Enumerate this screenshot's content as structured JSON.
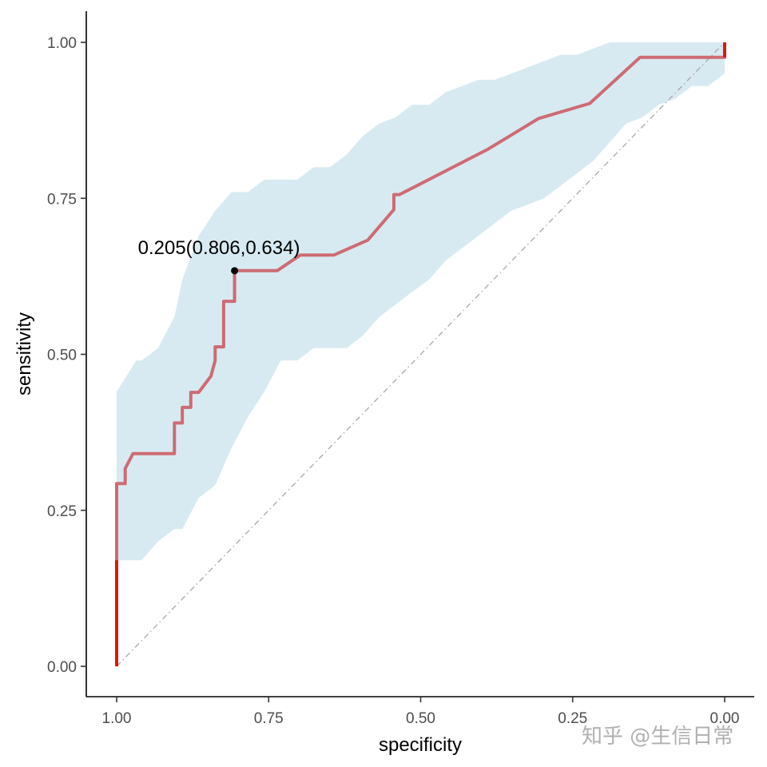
{
  "chart_data": {
    "type": "line",
    "subtype": "roc-curve",
    "xlabel": "specificity",
    "ylabel": "sensitivity",
    "xlim": [
      1.0,
      0.0
    ],
    "ylim": [
      0.0,
      1.0
    ],
    "x_ticks": [
      1.0,
      0.75,
      0.5,
      0.25,
      0.0
    ],
    "x_tick_labels": [
      "1.00",
      "0.75",
      "0.50",
      "0.25",
      "0.00"
    ],
    "y_ticks": [
      0.0,
      0.25,
      0.5,
      0.75,
      1.0
    ],
    "y_tick_labels": [
      "0.00",
      "0.25",
      "0.50",
      "0.75",
      "1.00"
    ],
    "grid": false,
    "colors": {
      "curve": "#cd6b73",
      "curve_ends": "#e0150f",
      "ci_band": "#d8eaf1",
      "diagonal": "#a6a6a6",
      "point": "#000000",
      "axis": "#000000"
    },
    "roc_curve": {
      "specificity": [
        1.0,
        1.0,
        0.986,
        0.986,
        0.973,
        0.959,
        0.905,
        0.905,
        0.892,
        0.892,
        0.878,
        0.878,
        0.865,
        0.845,
        0.838,
        0.838,
        0.824,
        0.824,
        0.806,
        0.806,
        0.791,
        0.736,
        0.698,
        0.643,
        0.587,
        0.544,
        0.544,
        0.535,
        0.389,
        0.306,
        0.222,
        0.139,
        0.0,
        0.0
      ],
      "sensitivity": [
        0.0,
        0.293,
        0.293,
        0.317,
        0.341,
        0.341,
        0.341,
        0.39,
        0.39,
        0.415,
        0.415,
        0.439,
        0.439,
        0.465,
        0.49,
        0.512,
        0.512,
        0.585,
        0.585,
        0.634,
        0.634,
        0.634,
        0.659,
        0.659,
        0.683,
        0.732,
        0.756,
        0.756,
        0.829,
        0.878,
        0.902,
        0.976,
        0.976,
        1.0
      ]
    },
    "ci_band": {
      "specificity": [
        1.0,
        0.968,
        0.959,
        0.932,
        0.905,
        0.892,
        0.865,
        0.838,
        0.811,
        0.784,
        0.757,
        0.73,
        0.703,
        0.676,
        0.649,
        0.622,
        0.595,
        0.568,
        0.541,
        0.514,
        0.486,
        0.459,
        0.432,
        0.405,
        0.378,
        0.351,
        0.324,
        0.297,
        0.27,
        0.243,
        0.216,
        0.189,
        0.162,
        0.135,
        0.108,
        0.081,
        0.054,
        0.027,
        0.0
      ],
      "upper": [
        0.44,
        0.49,
        0.49,
        0.51,
        0.56,
        0.62,
        0.69,
        0.73,
        0.76,
        0.76,
        0.78,
        0.78,
        0.78,
        0.8,
        0.8,
        0.82,
        0.85,
        0.87,
        0.88,
        0.9,
        0.9,
        0.92,
        0.93,
        0.94,
        0.94,
        0.95,
        0.96,
        0.97,
        0.98,
        0.98,
        0.99,
        1.0,
        1.0,
        1.0,
        1.0,
        1.0,
        1.0,
        1.0,
        1.0
      ],
      "lower": [
        0.17,
        0.17,
        0.17,
        0.2,
        0.22,
        0.22,
        0.27,
        0.29,
        0.35,
        0.4,
        0.44,
        0.49,
        0.49,
        0.51,
        0.51,
        0.51,
        0.53,
        0.56,
        0.58,
        0.6,
        0.62,
        0.65,
        0.67,
        0.69,
        0.71,
        0.73,
        0.74,
        0.75,
        0.77,
        0.79,
        0.81,
        0.84,
        0.87,
        0.88,
        0.9,
        0.91,
        0.93,
        0.93,
        0.95
      ]
    },
    "reference_line": {
      "from": [
        1.0,
        0.0
      ],
      "to": [
        0.0,
        1.0
      ],
      "style": "dash-dot"
    },
    "best_threshold": {
      "threshold": 0.205,
      "specificity": 0.806,
      "sensitivity": 0.634,
      "label": "0.205(0.806,0.634)"
    }
  },
  "watermark": {
    "icon": "zhihu-logo-icon",
    "text": "知乎 @生信日常"
  }
}
